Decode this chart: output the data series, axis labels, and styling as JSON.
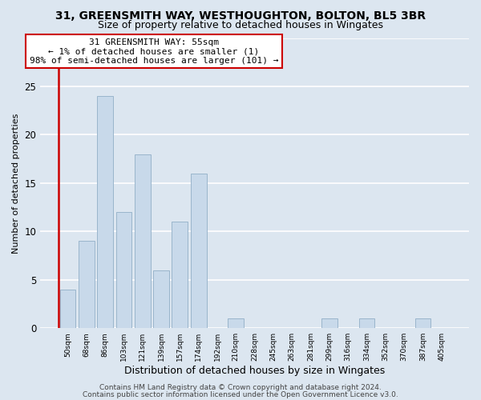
{
  "title1": "31, GREENSMITH WAY, WESTHOUGHTON, BOLTON, BL5 3BR",
  "title2": "Size of property relative to detached houses in Wingates",
  "xlabel": "Distribution of detached houses by size in Wingates",
  "ylabel": "Number of detached properties",
  "bar_labels": [
    "50sqm",
    "68sqm",
    "86sqm",
    "103sqm",
    "121sqm",
    "139sqm",
    "157sqm",
    "174sqm",
    "192sqm",
    "210sqm",
    "228sqm",
    "245sqm",
    "263sqm",
    "281sqm",
    "299sqm",
    "316sqm",
    "334sqm",
    "352sqm",
    "370sqm",
    "387sqm",
    "405sqm"
  ],
  "bar_values": [
    4,
    9,
    24,
    12,
    18,
    6,
    11,
    16,
    0,
    1,
    0,
    0,
    0,
    0,
    1,
    0,
    1,
    0,
    0,
    1,
    0
  ],
  "bar_color": "#c8d9ea",
  "bar_edge_color": "#9ab5cc",
  "annotation_box_text": "31 GREENSMITH WAY: 55sqm\n← 1% of detached houses are smaller (1)\n98% of semi-detached houses are larger (101) →",
  "annotation_box_color": "#ffffff",
  "annotation_box_edge_color": "#cc0000",
  "vline_color": "#cc0000",
  "ylim": [
    0,
    30
  ],
  "yticks": [
    0,
    5,
    10,
    15,
    20,
    25,
    30
  ],
  "footer1": "Contains HM Land Registry data © Crown copyright and database right 2024.",
  "footer2": "Contains public sector information licensed under the Open Government Licence v3.0.",
  "background_color": "#dce6f0",
  "plot_bg_color": "#dce6f0",
  "grid_color": "#ffffff",
  "title1_fontsize": 10,
  "title2_fontsize": 9,
  "annotation_fontsize": 8,
  "footer_fontsize": 6.5,
  "xlabel_fontsize": 9,
  "ylabel_fontsize": 8
}
